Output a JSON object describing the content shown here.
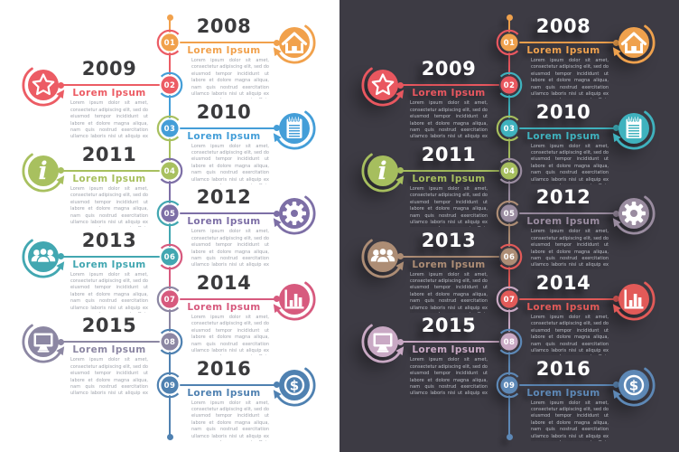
{
  "timeline": {
    "subtitle_label": "Lorem Ipsum",
    "body_text": "Lorem ipsum dolor sit amet, consectetur adipiscing elit, sed do eiusmod tempor incididunt ut labore et dolore magna aliqua, nam quis nostrud exercitation ullamco laboris nisi ut aliquip ex ea commodo consequat. Duis aute irure dolor in reprehenderit in voluptate velit esse cillum dolore eu fugiat nulla.",
    "icon_color": "#FFFFFF",
    "items": [
      {
        "year": "2008",
        "badge": "01",
        "icon": "home-icon",
        "side": "right",
        "light_color": "#F1A14C",
        "dark_color": "#EFA14D"
      },
      {
        "year": "2009",
        "badge": "02",
        "icon": "star-icon",
        "side": "left",
        "light_color": "#EC5C64",
        "dark_color": "#E9575F"
      },
      {
        "year": "2010",
        "badge": "03",
        "icon": "notepad-icon",
        "side": "right",
        "light_color": "#449ED8",
        "dark_color": "#3FB2BE"
      },
      {
        "year": "2011",
        "badge": "04",
        "icon": "info-icon",
        "side": "left",
        "light_color": "#A8C05F",
        "dark_color": "#A6BE5E"
      },
      {
        "year": "2012",
        "badge": "05",
        "icon": "gear-icon",
        "side": "right",
        "light_color": "#7D6FA6",
        "dark_color": "#9A8CA0"
      },
      {
        "year": "2013",
        "badge": "06",
        "icon": "people-icon",
        "side": "left",
        "light_color": "#42A7B1",
        "dark_color": "#AD8D75"
      },
      {
        "year": "2014",
        "badge": "07",
        "icon": "bar-chart-icon",
        "side": "right",
        "light_color": "#D75A7E",
        "dark_color": "#E25A58"
      },
      {
        "year": "2015",
        "badge": "08",
        "icon": "monitor-icon",
        "side": "left",
        "light_color": "#8C87A3",
        "dark_color": "#C9A9C4"
      },
      {
        "year": "2016",
        "badge": "09",
        "icon": "dollar-icon",
        "side": "right",
        "light_color": "#4F81B1",
        "dark_color": "#5D88B6"
      }
    ],
    "panels": [
      {
        "id": "light",
        "bg": "#FFFFFF",
        "year_color": "#3B3B3D",
        "body_color": "#9EA2AB"
      },
      {
        "id": "dark",
        "bg": "#3D3B44",
        "year_color": "#FFFFFF",
        "body_color": "#BCBFC7"
      }
    ]
  }
}
